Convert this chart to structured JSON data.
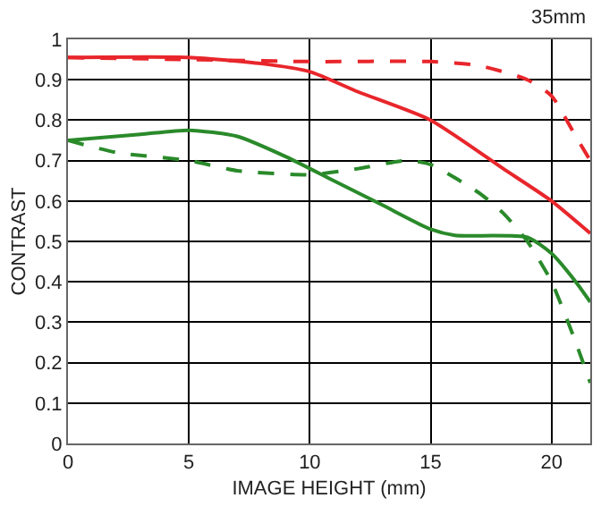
{
  "chart_data": {
    "type": "line",
    "xlabel": "IMAGE HEIGHT (mm)",
    "ylabel": "CONTRAST",
    "annotations": [
      "35mm"
    ],
    "xlim": [
      0,
      21.6
    ],
    "xticks": [
      0,
      5,
      10,
      15,
      20
    ],
    "ylim": [
      0,
      1
    ],
    "yticks": [
      0,
      0.1,
      0.2,
      0.3,
      0.4,
      0.5,
      0.6,
      0.7,
      0.8,
      0.9,
      1
    ],
    "grid": true,
    "series": [
      {
        "color": "#e8262b",
        "line_style": "solid",
        "x": [
          0,
          5,
          8,
          10,
          12,
          15,
          18,
          20,
          21.6
        ],
        "values": [
          0.955,
          0.955,
          0.94,
          0.92,
          0.87,
          0.8,
          0.68,
          0.6,
          0.52
        ]
      },
      {
        "color": "#e8262b",
        "line_style": "dashed",
        "x": [
          0,
          5,
          10,
          15,
          17,
          19,
          20,
          21,
          21.6
        ],
        "values": [
          0.955,
          0.95,
          0.945,
          0.945,
          0.935,
          0.9,
          0.86,
          0.76,
          0.7
        ]
      },
      {
        "color": "#2a8a2a",
        "line_style": "solid",
        "x": [
          0,
          3,
          5,
          7,
          9,
          11,
          13,
          15,
          16,
          19,
          20,
          21,
          21.6
        ],
        "values": [
          0.75,
          0.765,
          0.775,
          0.76,
          0.71,
          0.65,
          0.59,
          0.53,
          0.515,
          0.51,
          0.47,
          0.4,
          0.35
        ]
      },
      {
        "color": "#2a8a2a",
        "line_style": "dashed",
        "x": [
          0,
          2,
          5,
          7,
          10,
          12,
          14,
          15,
          17,
          18,
          19,
          20,
          21,
          21.6
        ],
        "values": [
          0.75,
          0.72,
          0.7,
          0.675,
          0.665,
          0.68,
          0.7,
          0.69,
          0.62,
          0.57,
          0.5,
          0.4,
          0.25,
          0.15
        ]
      }
    ]
  }
}
